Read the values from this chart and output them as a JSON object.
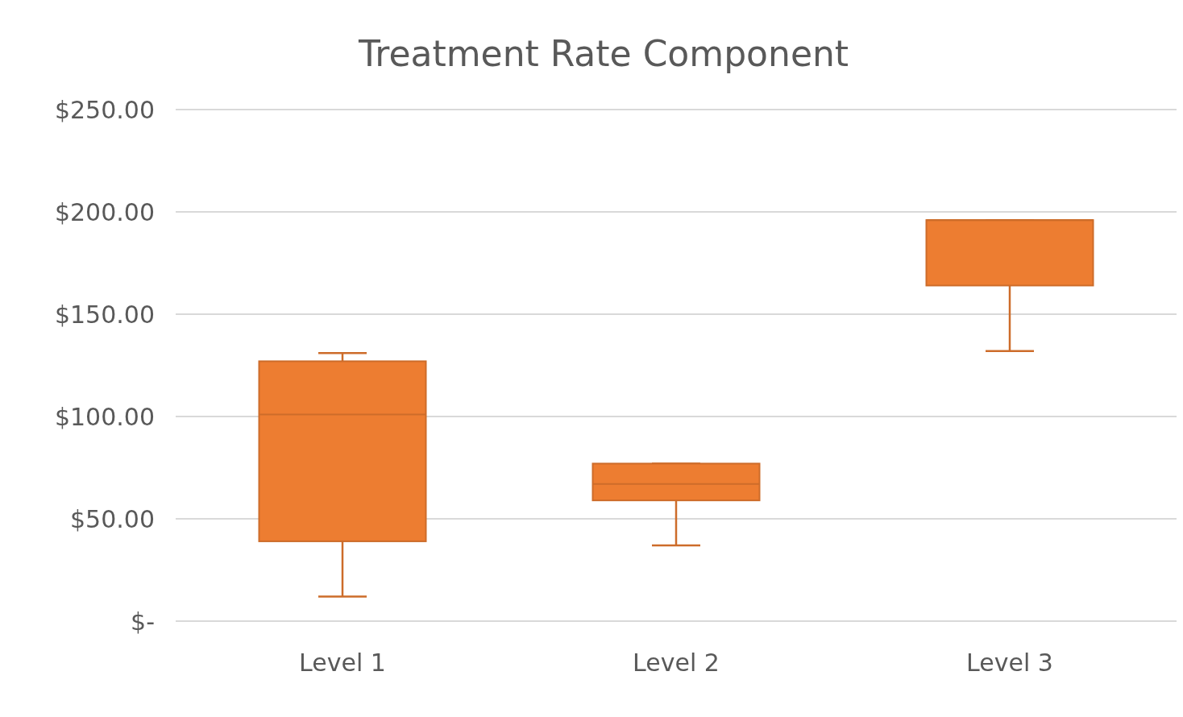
{
  "chart_data": {
    "type": "box",
    "title": "Treatment Rate Component",
    "categories": [
      "Level 1",
      "Level 2",
      "Level 3"
    ],
    "series": [
      {
        "color": "#ed7d31",
        "boxes": [
          {
            "low": 12,
            "q1": 39,
            "median": 101,
            "q3": 127,
            "high": 131
          },
          {
            "low": 37,
            "q1": 59,
            "median": 67,
            "q3": 77,
            "high": 77
          },
          {
            "low": 132,
            "q1": 164,
            "median": 196,
            "q3": 196,
            "high": 196
          }
        ]
      }
    ],
    "ylim": [
      0,
      250
    ],
    "yticks": [
      {
        "value": 0,
        "label": "$-"
      },
      {
        "value": 50,
        "label": "$50.00"
      },
      {
        "value": 100,
        "label": "$100.00"
      },
      {
        "value": 150,
        "label": "$150.00"
      },
      {
        "value": 200,
        "label": "$200.00"
      },
      {
        "value": 250,
        "label": "$250.00"
      }
    ],
    "grid": "y"
  }
}
